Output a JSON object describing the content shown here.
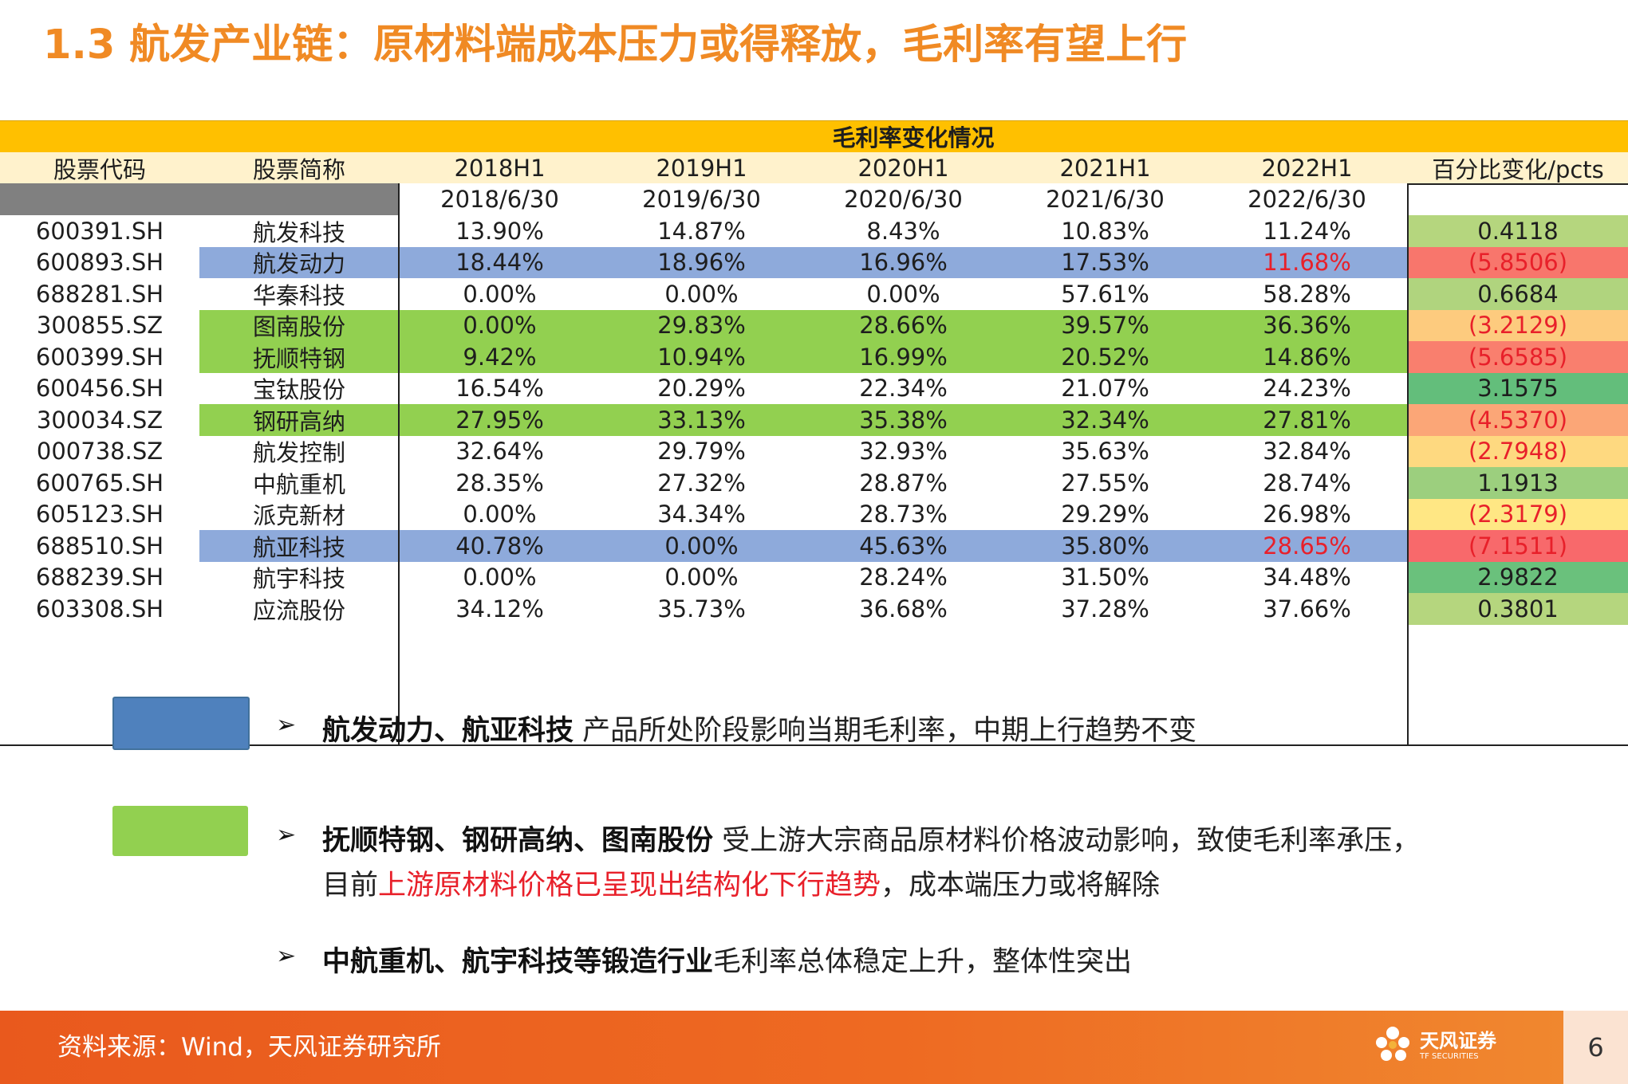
{
  "title": "1.3 航发产业链：原材料端成本压力或得释放，毛利率有望上行",
  "table": {
    "group_header": "毛利率变化情况",
    "columns": [
      "股票代码",
      "股票简称",
      "2018H1",
      "2019H1",
      "2020H1",
      "2021H1",
      "2022H1",
      "百分比变化/pcts"
    ],
    "dates": [
      "2018/6/30",
      "2019/6/30",
      "2020/6/30",
      "2021/6/30",
      "2022/6/30"
    ],
    "rows": [
      {
        "code": "600391.SH",
        "name": "航发科技",
        "v": [
          "13.90%",
          "14.87%",
          "8.43%",
          "10.83%",
          "11.24%"
        ],
        "chg": "0.4118",
        "hl": "",
        "chg_color": "#b5d67e",
        "red_last": false
      },
      {
        "code": "600893.SH",
        "name": "航发动力",
        "v": [
          "18.44%",
          "18.96%",
          "16.96%",
          "17.53%",
          "11.68%"
        ],
        "chg": "(5.8506)",
        "hl": "#8eaadb",
        "chg_color": "#f8766c",
        "red_last": true
      },
      {
        "code": "688281.SH",
        "name": "华秦科技",
        "v": [
          "0.00%",
          "0.00%",
          "0.00%",
          "57.61%",
          "58.28%"
        ],
        "chg": "0.6684",
        "hl": "",
        "chg_color": "#b0d47e",
        "red_last": false
      },
      {
        "code": "300855.SZ",
        "name": "图南股份",
        "v": [
          "0.00%",
          "29.83%",
          "28.66%",
          "39.57%",
          "36.36%"
        ],
        "chg": "(3.2129)",
        "hl": "#92d050",
        "chg_color": "#fdcb7e",
        "red_last": false
      },
      {
        "code": "600399.SH",
        "name": "抚顺特钢",
        "v": [
          "9.42%",
          "10.94%",
          "16.99%",
          "20.52%",
          "14.86%"
        ],
        "chg": "(5.6585)",
        "hl": "#92d050",
        "chg_color": "#f97f6e",
        "red_last": false
      },
      {
        "code": "600456.SH",
        "name": "宝钛股份",
        "v": [
          "16.54%",
          "20.29%",
          "22.34%",
          "21.07%",
          "24.23%"
        ],
        "chg": "3.1575",
        "hl": "",
        "chg_color": "#63be7b",
        "red_last": false
      },
      {
        "code": "300034.SZ",
        "name": "钢研高纳",
        "v": [
          "27.95%",
          "33.13%",
          "35.38%",
          "32.34%",
          "27.81%"
        ],
        "chg": "(4.5370)",
        "hl": "#92d050",
        "chg_color": "#fba677",
        "red_last": false
      },
      {
        "code": "000738.SZ",
        "name": "航发控制",
        "v": [
          "32.64%",
          "29.79%",
          "32.93%",
          "35.63%",
          "32.84%"
        ],
        "chg": "(2.7948)",
        "hl": "",
        "chg_color": "#fed980",
        "red_last": false
      },
      {
        "code": "600765.SH",
        "name": "中航重机",
        "v": [
          "28.35%",
          "27.32%",
          "28.87%",
          "27.55%",
          "28.74%"
        ],
        "chg": "1.1913",
        "hl": "",
        "chg_color": "#9ccf7e",
        "red_last": false
      },
      {
        "code": "605123.SH",
        "name": "派克新材",
        "v": [
          "0.00%",
          "34.34%",
          "28.73%",
          "29.29%",
          "26.98%"
        ],
        "chg": "(2.3179)",
        "hl": "",
        "chg_color": "#ffe784",
        "red_last": false
      },
      {
        "code": "688510.SH",
        "name": "航亚科技",
        "v": [
          "40.78%",
          "0.00%",
          "45.63%",
          "35.80%",
          "28.65%"
        ],
        "chg": "(7.1511)",
        "hl": "#8eaadb",
        "chg_color": "#f8696b",
        "red_last": true
      },
      {
        "code": "688239.SH",
        "name": "航宇科技",
        "v": [
          "0.00%",
          "0.00%",
          "28.24%",
          "31.50%",
          "34.48%"
        ],
        "chg": "2.9822",
        "hl": "",
        "chg_color": "#6ac17c",
        "red_last": false
      },
      {
        "code": "603308.SH",
        "name": "应流股份",
        "v": [
          "34.12%",
          "35.73%",
          "36.68%",
          "37.28%",
          "37.66%"
        ],
        "chg": "0.3801",
        "hl": "",
        "chg_color": "#b5d67e",
        "red_last": false
      }
    ]
  },
  "legend": {
    "blue_color": "#4f81bd",
    "green_color": "#92d050",
    "bullet1_bold": "航发动力、航亚科技",
    "bullet1_text": " 产品所处阶段影响当期毛利率，中期上行趋势不变",
    "bullet2_bold": "抚顺特钢、钢研高纳、图南股份",
    "bullet2_text": "  受上游大宗商品原材料价格波动影响，致使毛利率承压，",
    "bullet2_line2_pre": "目前",
    "bullet2_line2_red": "上游原材料价格已呈现出结构化下行趋势",
    "bullet2_line2_post": "，成本端压力或将解除",
    "bullet3_bold": "中航重机、航宇科技等锻造行业",
    "bullet3_text": "毛利率总体稳定上升，整体性突出"
  },
  "footer": {
    "source": "资料来源：Wind，天风证券研究所",
    "logo_cn": "天风证券",
    "logo_en": "TF SECURITIES",
    "page": "6"
  }
}
